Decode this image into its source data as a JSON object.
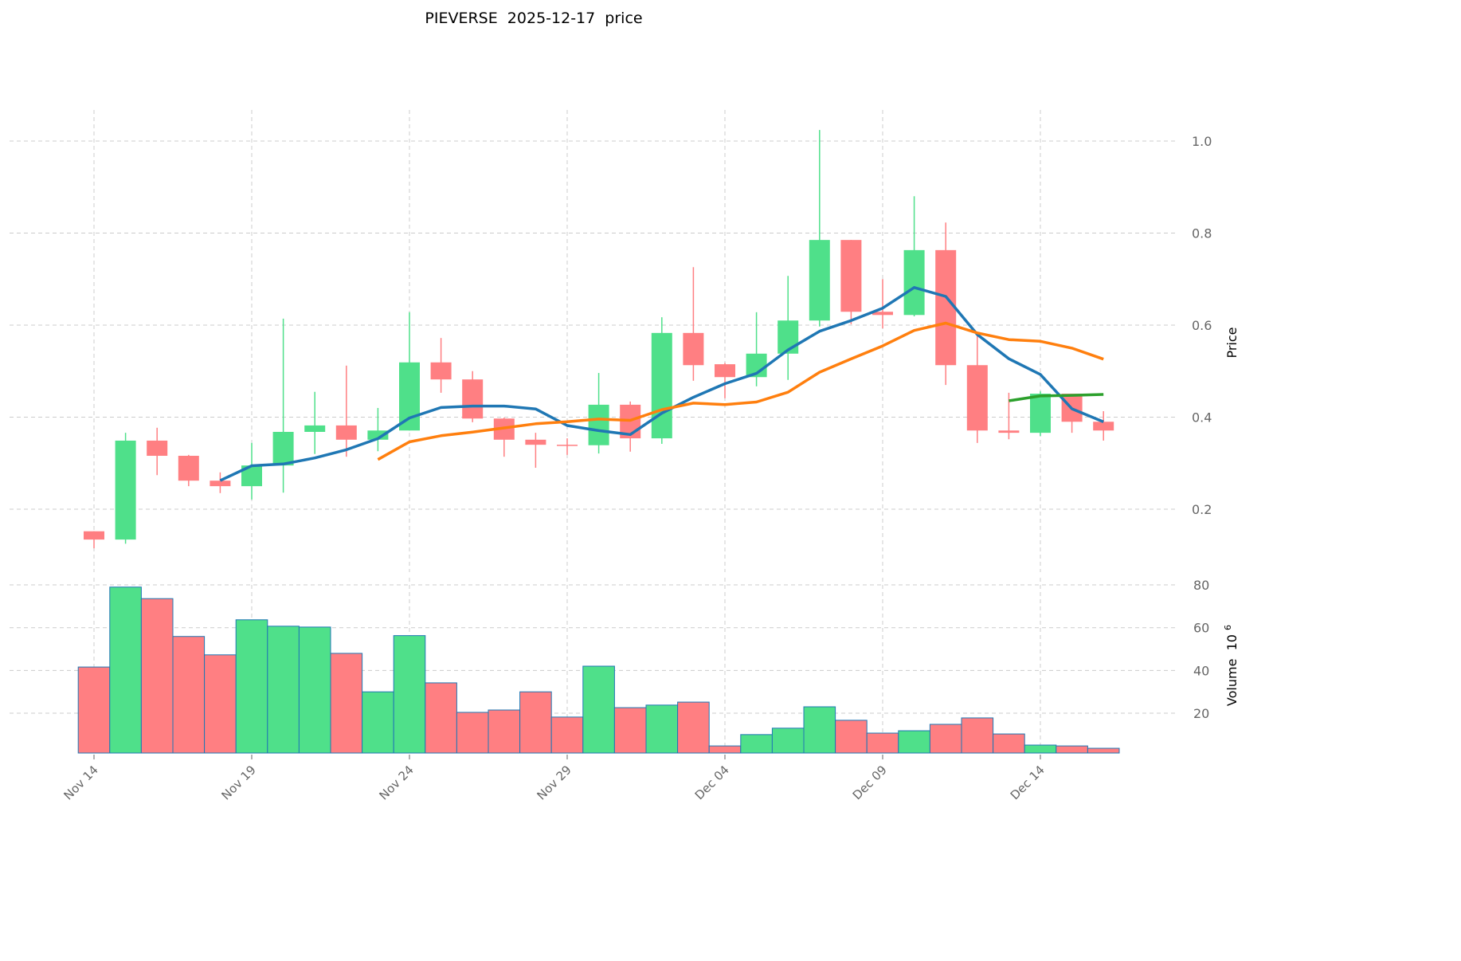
{
  "chart_data": {
    "type": "candlestick",
    "title": "PIEVERSE  2025-12-17  price",
    "price_axis": {
      "label": "Price",
      "ticks": [
        0.2,
        0.4,
        0.6,
        0.8,
        1.0
      ],
      "ylim": [
        0.085,
        1.07
      ],
      "position": "right"
    },
    "volume_axis": {
      "label": "Volume  10^6",
      "ticks": [
        20,
        40,
        60,
        80
      ],
      "ylim": [
        0,
        86
      ],
      "position": "right"
    },
    "x_ticks": [
      {
        "label": "Nov 14",
        "index": 0
      },
      {
        "label": "Nov 19",
        "index": 5
      },
      {
        "label": "Nov 24",
        "index": 10
      },
      {
        "label": "Nov 29",
        "index": 15
      },
      {
        "label": "Dec 04",
        "index": 20
      },
      {
        "label": "Dec 09",
        "index": 25
      },
      {
        "label": "Dec 14",
        "index": 30
      }
    ],
    "grid": true,
    "colors": {
      "up": "#4fe08a",
      "down": "#ff7f82",
      "volume_edge": "#1f77b4"
    },
    "moving_averages": [
      {
        "window": 5,
        "color": "#1f77b4"
      },
      {
        "window": 10,
        "color": "#ff7f0e"
      },
      {
        "window": 30,
        "color": "#2ca02c"
      }
    ],
    "dates": [
      "Nov 14",
      "Nov 15",
      "Nov 16",
      "Nov 17",
      "Nov 18",
      "Nov 19",
      "Nov 20",
      "Nov 21",
      "Nov 22",
      "Nov 23",
      "Nov 24",
      "Nov 25",
      "Nov 26",
      "Nov 27",
      "Nov 28",
      "Nov 29",
      "Nov 30",
      "Dec 01",
      "Dec 02",
      "Dec 03",
      "Dec 04",
      "Dec 05",
      "Dec 06",
      "Dec 07",
      "Dec 08",
      "Dec 09",
      "Dec 10",
      "Dec 11",
      "Dec 12",
      "Dec 13",
      "Dec 14",
      "Dec 15",
      "Dec 16"
    ],
    "open": [
      0.152,
      0.134,
      0.349,
      0.316,
      0.262,
      0.25,
      0.295,
      0.368,
      0.382,
      0.351,
      0.371,
      0.519,
      0.482,
      0.397,
      0.351,
      0.34,
      0.339,
      0.427,
      0.354,
      0.583,
      0.515,
      0.487,
      0.538,
      0.61,
      0.785,
      0.629,
      0.622,
      0.763,
      0.513,
      0.371,
      0.366,
      0.451,
      0.39
    ],
    "high": [
      0.152,
      0.366,
      0.377,
      0.318,
      0.28,
      0.344,
      0.614,
      0.455,
      0.512,
      0.42,
      0.628,
      0.572,
      0.5,
      0.399,
      0.366,
      0.354,
      0.496,
      0.434,
      0.617,
      0.726,
      0.518,
      0.628,
      0.707,
      1.024,
      0.785,
      0.7,
      0.88,
      0.823,
      0.583,
      0.453,
      0.456,
      0.451,
      0.413
    ],
    "low": [
      0.115,
      0.125,
      0.274,
      0.25,
      0.235,
      0.221,
      0.236,
      0.32,
      0.314,
      0.326,
      0.371,
      0.453,
      0.389,
      0.314,
      0.29,
      0.318,
      0.321,
      0.325,
      0.342,
      0.479,
      0.441,
      0.467,
      0.481,
      0.597,
      0.602,
      0.593,
      0.619,
      0.47,
      0.344,
      0.352,
      0.359,
      0.366,
      0.349
    ],
    "close": [
      0.134,
      0.349,
      0.316,
      0.262,
      0.25,
      0.295,
      0.368,
      0.382,
      0.351,
      0.371,
      0.519,
      0.482,
      0.397,
      0.351,
      0.34,
      0.339,
      0.427,
      0.354,
      0.583,
      0.513,
      0.487,
      0.538,
      0.61,
      0.785,
      0.629,
      0.622,
      0.763,
      0.513,
      0.371,
      0.366,
      0.451,
      0.39,
      0.371
    ],
    "volume": [
      41.6,
      79.0,
      73.6,
      55.9,
      47.3,
      63.7,
      60.7,
      60.3,
      48.0,
      30.0,
      56.3,
      34.2,
      20.4,
      21.5,
      30.0,
      18.2,
      42.0,
      22.6,
      23.8,
      25.2,
      4.7,
      10.0,
      13.0,
      23.0,
      16.7,
      10.7,
      11.8,
      14.8,
      17.8,
      10.3,
      5.1,
      4.7,
      3.6
    ]
  }
}
